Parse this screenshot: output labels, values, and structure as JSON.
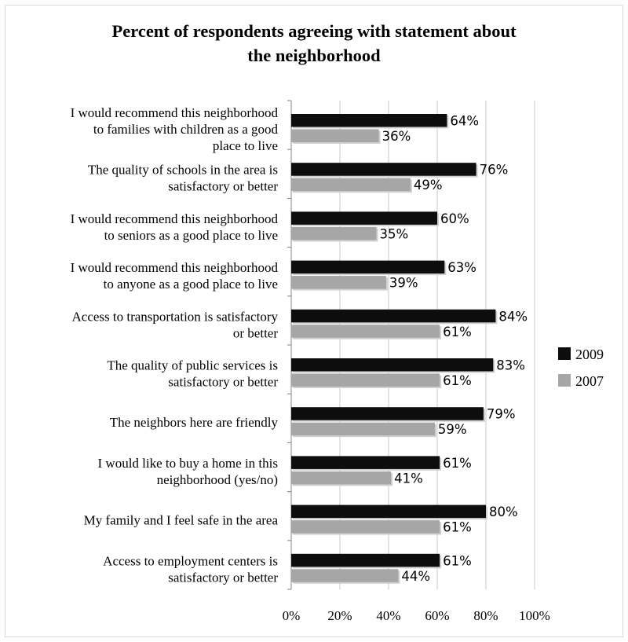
{
  "chart_data": {
    "type": "bar",
    "orientation": "horizontal",
    "title": [
      "Percent of respondents agreeing with statement about",
      "the neighborhood"
    ],
    "categories": [
      [
        "I would recommend this neighborhood",
        "to families with children as a good",
        "place to live"
      ],
      [
        "The quality of schools in the area is",
        "satisfactory or better"
      ],
      [
        "I would recommend this neighborhood",
        "to seniors as a good place to live"
      ],
      [
        "I would recommend this neighborhood",
        "to anyone as a good place to live"
      ],
      [
        "Access to transportation is satisfactory",
        "or better"
      ],
      [
        "The quality of public services is",
        "satisfactory or better"
      ],
      [
        "The neighbors here are friendly"
      ],
      [
        "I would like to buy a home in this",
        "neighborhood (yes/no)"
      ],
      [
        "My family and I feel safe in the area"
      ],
      [
        "Access to employment centers is",
        "satisfactory or better"
      ]
    ],
    "series": [
      {
        "name": "2009",
        "color": "#0d0d0d",
        "values": [
          64,
          76,
          60,
          63,
          84,
          83,
          79,
          61,
          80,
          61
        ],
        "labels": [
          "64%",
          "76%",
          "60%",
          "63%",
          "84%",
          "83%",
          "79%",
          "61%",
          "80%",
          "61%"
        ]
      },
      {
        "name": "2007",
        "color": "#a6a6a6",
        "values": [
          36,
          49,
          35,
          39,
          61,
          61,
          59,
          41,
          61,
          44
        ],
        "labels": [
          "36%",
          "49%",
          "35%",
          "39%",
          "61%",
          "61%",
          "59%",
          "41%",
          "61%",
          "44%"
        ]
      }
    ],
    "xlim": [
      0,
      100
    ],
    "x_ticks": [
      0,
      20,
      40,
      60,
      80,
      100
    ],
    "x_tick_labels": [
      "0%",
      "20%",
      "40%",
      "60%",
      "80%",
      "100%"
    ],
    "grid": true,
    "legend_position": "right"
  }
}
